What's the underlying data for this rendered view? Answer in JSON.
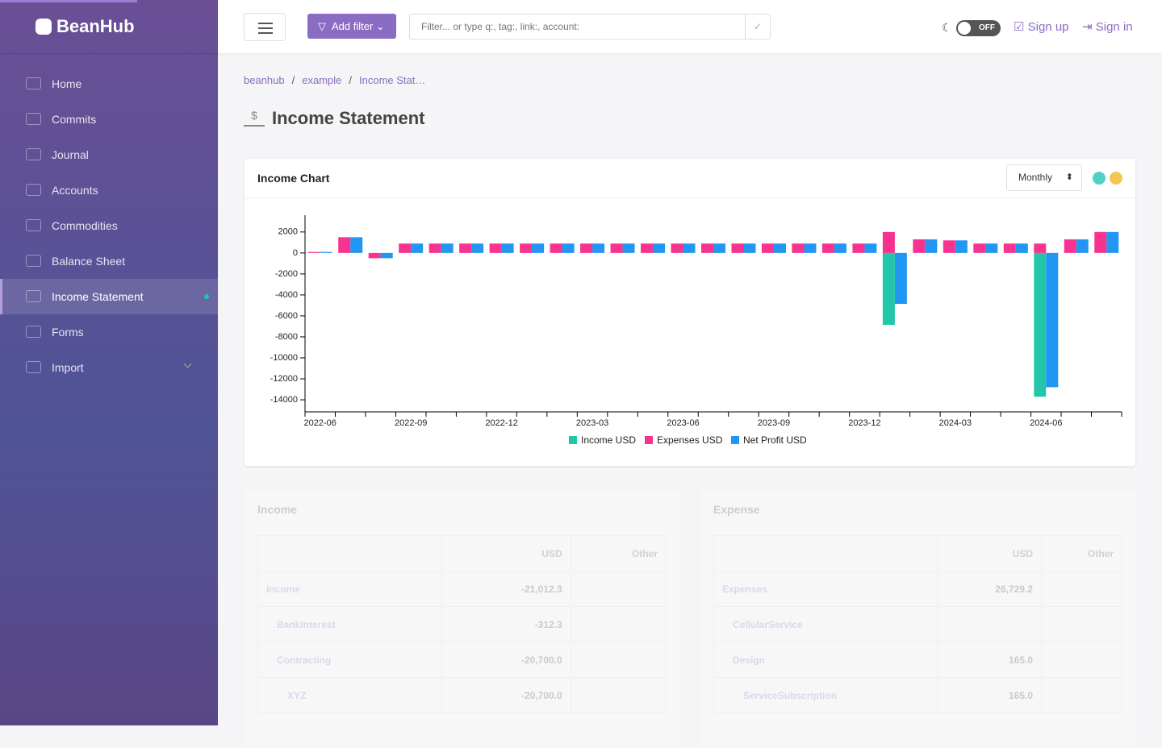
{
  "brand": "BeanHub",
  "sidebar": [
    "Home",
    "Commits",
    "Journal",
    "Accounts",
    "Commodities",
    "Balance Sheet",
    "Income Statement",
    "Forms",
    "Import"
  ],
  "topbar": {
    "add_filter": "Add filter",
    "search_placeholder": "Filter... or type q:, tag:, link:, account:",
    "toggle": "OFF",
    "sign_up": "Sign up",
    "sign_in": "Sign in"
  },
  "breadcrumb": [
    "beanhub",
    "example",
    "Income Stat…"
  ],
  "page_title": "Income Statement",
  "chart_card": {
    "title": "Income Chart",
    "period": "Monthly"
  },
  "chart_data": {
    "type": "bar",
    "categories": [
      "2022-06",
      null,
      null,
      "2022-09",
      null,
      null,
      "2022-12",
      null,
      null,
      "2023-03",
      null,
      null,
      "2023-06",
      null,
      null,
      "2023-09",
      null,
      null,
      "2023-12",
      null,
      null,
      "2024-03",
      null,
      null,
      "2024-06",
      null,
      null
    ],
    "series": [
      {
        "name": "Income USD",
        "color": "#22c7a9",
        "stack": true,
        "values": [
          0,
          0,
          0,
          0,
          0,
          0,
          0,
          0,
          0,
          0,
          0,
          0,
          0,
          0,
          0,
          0,
          0,
          0,
          0,
          -6850,
          0,
          0,
          0,
          0,
          -13700,
          0,
          0
        ]
      },
      {
        "name": "Expenses USD",
        "color": "#f7338f",
        "stack": true,
        "values": [
          100,
          1500,
          -500,
          900,
          900,
          900,
          900,
          900,
          900,
          900,
          900,
          900,
          900,
          900,
          900,
          900,
          900,
          900,
          900,
          2000,
          1300,
          1200,
          900,
          900,
          900,
          1300,
          2000
        ]
      },
      {
        "name": "Net Profit USD",
        "color": "#2196f3",
        "values": [
          100,
          1500,
          -500,
          900,
          900,
          900,
          900,
          900,
          900,
          900,
          900,
          900,
          900,
          900,
          900,
          900,
          900,
          900,
          900,
          -4850,
          1300,
          1200,
          900,
          900,
          -12800,
          1300,
          2000
        ]
      }
    ],
    "ylim": [
      -15150,
      3600
    ],
    "yticks": [
      -14000,
      -12000,
      -10000,
      -8000,
      -6000,
      -4000,
      -2000,
      0,
      2000
    ],
    "grid": false
  },
  "tables": [
    {
      "title": "Income",
      "columns": [
        "USD",
        "Other"
      ],
      "rows": [
        {
          "name": "Income",
          "usd": "-21,012.3"
        },
        {
          "name": "BankInterest",
          "usd": "-312.3"
        },
        {
          "name": "Contracting",
          "usd": "-20,700.0"
        },
        {
          "name": "XYZ",
          "usd": "-20,700.0"
        }
      ]
    },
    {
      "title": "Expense",
      "columns": [
        "USD",
        "Other"
      ],
      "rows": [
        {
          "name": "Expenses",
          "usd": "26,729.2"
        },
        {
          "name": "CellularService"
        },
        {
          "name": "Design",
          "usd": "165.0"
        },
        {
          "name": "ServiceSubscription",
          "usd": "165.0"
        }
      ]
    }
  ]
}
